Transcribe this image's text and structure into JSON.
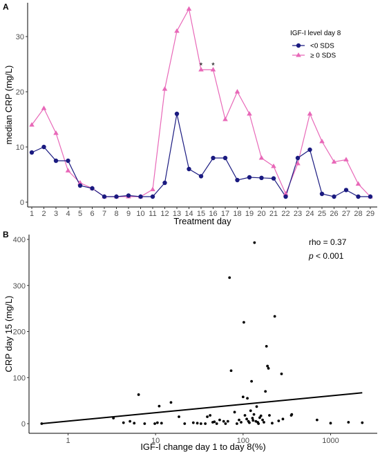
{
  "colors": {
    "series_low": "#1a1a80",
    "series_high": "#e868b8",
    "axis": "#000000",
    "regression": "#000000",
    "points": "#000000"
  },
  "chart_data": [
    {
      "panel": "A",
      "type": "line",
      "xlabel": "Treatment day",
      "ylabel": "median CRP (mg/L)",
      "x": [
        1,
        2,
        3,
        4,
        5,
        6,
        7,
        8,
        9,
        10,
        11,
        12,
        13,
        14,
        15,
        16,
        17,
        18,
        19,
        20,
        21,
        22,
        23,
        24,
        25,
        26,
        27,
        28,
        29
      ],
      "xticks": [
        "1",
        "2",
        "3",
        "4",
        "5",
        "6",
        "7",
        "8",
        "9",
        "10",
        "11",
        "12",
        "13",
        "14",
        "15",
        "16",
        "17",
        "18",
        "19",
        "20",
        "21",
        "22",
        "23",
        "24",
        "25",
        "26",
        "27",
        "28",
        "29"
      ],
      "ylim": [
        0,
        36
      ],
      "yticks": [
        0,
        10,
        20,
        30
      ],
      "ytick_labels": [
        "0",
        "10",
        "20",
        "30"
      ],
      "legend": {
        "title": "IGF-I level day 8",
        "position": "top-right"
      },
      "series": [
        {
          "name": "<0 SDS",
          "marker": "circle",
          "values": [
            9,
            10,
            7.5,
            7.5,
            3,
            2.5,
            1,
            1,
            1.2,
            1,
            1,
            3.5,
            16,
            6,
            4.7,
            8,
            8,
            4,
            4.5,
            4.4,
            4.3,
            1,
            8,
            9.5,
            1.5,
            1,
            2.2,
            1,
            1
          ]
        },
        {
          "name": "≥ 0 SDS",
          "marker": "triangle",
          "values": [
            14,
            17,
            12.5,
            5.7,
            3.5,
            2.5,
            1,
            1,
            1,
            1,
            2.3,
            20.5,
            31,
            35,
            24,
            24,
            15,
            20,
            16,
            8,
            6.5,
            1.5,
            7,
            16,
            11,
            7.3,
            7.7,
            3.3,
            1
          ]
        }
      ],
      "annotations": [
        {
          "text": "*",
          "x": 15,
          "y": 24
        },
        {
          "text": "*",
          "x": 16,
          "y": 24
        }
      ],
      "grid": false
    },
    {
      "panel": "B",
      "type": "scatter",
      "xlabel": "IGF-I change day 1 to day 8(%)",
      "ylabel": "CRP day 15 (mg/L)",
      "xscale": "log",
      "xlim": [
        0.45,
        2800
      ],
      "xticks": [
        1,
        10,
        100,
        1000
      ],
      "xtick_labels": [
        "1",
        "10",
        "100",
        "1000"
      ],
      "ylim": [
        -12,
        415
      ],
      "yticks": [
        0,
        100,
        200,
        300,
        400
      ],
      "ytick_labels": [
        "0",
        "100",
        "200",
        "300",
        "400"
      ],
      "regression": {
        "x1": 0.5,
        "y1": 0,
        "x2": 2300,
        "y2": 67
      },
      "stats": {
        "rho": "rho = 0.37",
        "p_symbol": "p",
        "p_rest": " < 0.001"
      },
      "points": [
        [
          0.5,
          0
        ],
        [
          3.3,
          12
        ],
        [
          4.3,
          2
        ],
        [
          5.1,
          5
        ],
        [
          5.7,
          1
        ],
        [
          6.4,
          63
        ],
        [
          7.5,
          0
        ],
        [
          9.8,
          0
        ],
        [
          10.5,
          2
        ],
        [
          11,
          38
        ],
        [
          11.7,
          1
        ],
        [
          15,
          46
        ],
        [
          18.5,
          15
        ],
        [
          21.5,
          0
        ],
        [
          27,
          2
        ],
        [
          30,
          1
        ],
        [
          33,
          0
        ],
        [
          37,
          0
        ],
        [
          39,
          15
        ],
        [
          42,
          18
        ],
        [
          45,
          3
        ],
        [
          47,
          4
        ],
        [
          50,
          0
        ],
        [
          54,
          8
        ],
        [
          60,
          5
        ],
        [
          63,
          0
        ],
        [
          67,
          5
        ],
        [
          70,
          317
        ],
        [
          73,
          115
        ],
        [
          80,
          25
        ],
        [
          85,
          0
        ],
        [
          90,
          8
        ],
        [
          95,
          3
        ],
        [
          100,
          58
        ],
        [
          102,
          220
        ],
        [
          105,
          18
        ],
        [
          110,
          10
        ],
        [
          112,
          55
        ],
        [
          115,
          5
        ],
        [
          118,
          2
        ],
        [
          122,
          28
        ],
        [
          125,
          92
        ],
        [
          128,
          12
        ],
        [
          130,
          7
        ],
        [
          133,
          20
        ],
        [
          135,
          393
        ],
        [
          140,
          5
        ],
        [
          143,
          37
        ],
        [
          147,
          3
        ],
        [
          150,
          0
        ],
        [
          155,
          13
        ],
        [
          160,
          17
        ],
        [
          167,
          8
        ],
        [
          173,
          3
        ],
        [
          180,
          70
        ],
        [
          185,
          168
        ],
        [
          190,
          125
        ],
        [
          195,
          120
        ],
        [
          200,
          18
        ],
        [
          215,
          1
        ],
        [
          230,
          233
        ],
        [
          255,
          6
        ],
        [
          275,
          108
        ],
        [
          285,
          10
        ],
        [
          355,
          18
        ],
        [
          360,
          20
        ],
        [
          700,
          8
        ],
        [
          1000,
          1
        ],
        [
          1600,
          3
        ],
        [
          2300,
          2
        ]
      ],
      "grid": false
    }
  ]
}
